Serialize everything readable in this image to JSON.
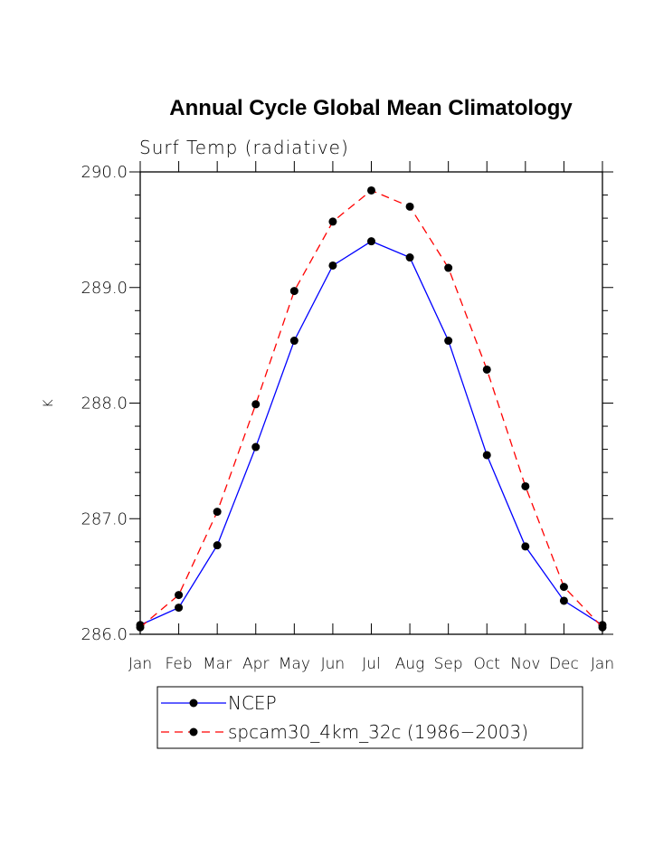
{
  "chart_data": {
    "type": "line",
    "title": "Annual Cycle Global Mean Climatology",
    "subtitle": "Surf Temp (radiative)",
    "ylabel": "K",
    "xlabel": "",
    "categories": [
      "Jan",
      "Feb",
      "Mar",
      "Apr",
      "May",
      "Jun",
      "Jul",
      "Aug",
      "Sep",
      "Oct",
      "Nov",
      "Dec",
      "Jan"
    ],
    "ylim": [
      286.0,
      290.0
    ],
    "yticks": [
      "286.0",
      "287.0",
      "288.0",
      "289.0",
      "290.0"
    ],
    "series": [
      {
        "name": "NCEP",
        "color": "#0000ff",
        "dash": "solid",
        "values": [
          286.08,
          286.23,
          286.77,
          287.62,
          288.54,
          289.19,
          289.4,
          289.26,
          288.54,
          287.55,
          286.76,
          286.29,
          286.08
        ]
      },
      {
        "name": "spcam30_4km_32c (1986−2003)",
        "color": "#ff0000",
        "dash": "dashed",
        "values": [
          286.06,
          286.34,
          287.06,
          287.99,
          288.97,
          289.57,
          289.84,
          289.7,
          289.17,
          288.29,
          287.28,
          286.41,
          286.06
        ]
      }
    ],
    "legend_position": "bottom-left",
    "grid": false
  }
}
